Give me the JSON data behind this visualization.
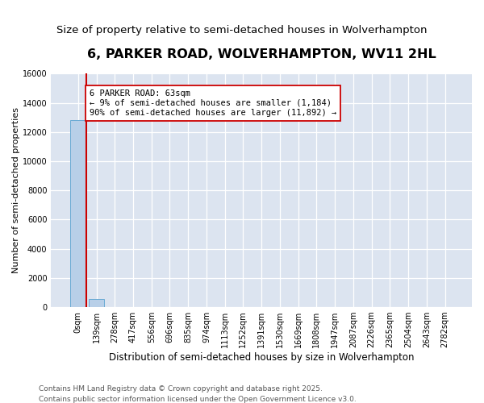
{
  "title": "6, PARKER ROAD, WOLVERHAMPTON, WV11 2HL",
  "subtitle": "Size of property relative to semi-detached houses in Wolverhampton",
  "xlabel": "Distribution of semi-detached houses by size in Wolverhampton",
  "ylabel": "Number of semi-detached properties",
  "bin_labels": [
    "0sqm",
    "139sqm",
    "278sqm",
    "417sqm",
    "556sqm",
    "696sqm",
    "835sqm",
    "974sqm",
    "1113sqm",
    "1252sqm",
    "1391sqm",
    "1530sqm",
    "1669sqm",
    "1808sqm",
    "1947sqm",
    "2087sqm",
    "2226sqm",
    "2365sqm",
    "2504sqm",
    "2643sqm",
    "2782sqm"
  ],
  "bar_values": [
    12800,
    530,
    0,
    0,
    0,
    0,
    0,
    0,
    0,
    0,
    0,
    0,
    0,
    0,
    0,
    0,
    0,
    0,
    0,
    0,
    0
  ],
  "bar_color": "#b8cfe8",
  "bar_edge_color": "#6aaad4",
  "annotation_text": "6 PARKER ROAD: 63sqm\n← 9% of semi-detached houses are smaller (1,184)\n90% of semi-detached houses are larger (11,892) →",
  "annotation_box_facecolor": "white",
  "annotation_box_edgecolor": "#cc0000",
  "property_line_color": "#cc0000",
  "property_line_x": 0.455,
  "ylim_max": 16000,
  "yticks": [
    0,
    2000,
    4000,
    6000,
    8000,
    10000,
    12000,
    14000,
    16000
  ],
  "background_color": "#dce4f0",
  "grid_color": "white",
  "footer_text": "Contains HM Land Registry data © Crown copyright and database right 2025.\nContains public sector information licensed under the Open Government Licence v3.0.",
  "title_fontsize": 11.5,
  "subtitle_fontsize": 9.5,
  "xlabel_fontsize": 8.5,
  "ylabel_fontsize": 8,
  "tick_fontsize": 7,
  "annotation_fontsize": 7.5,
  "footer_fontsize": 6.5
}
